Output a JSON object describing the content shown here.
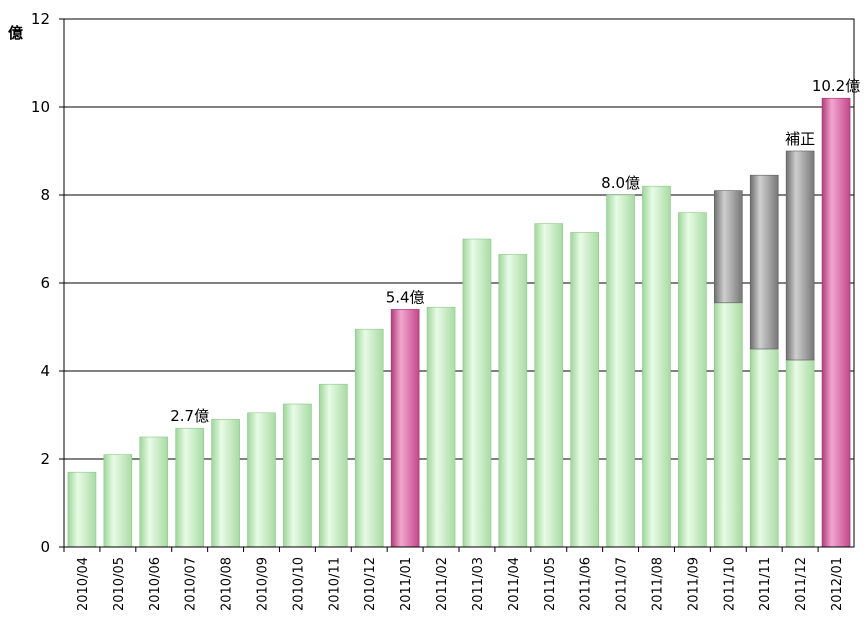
{
  "chart_data": {
    "type": "bar",
    "ylabel": "億",
    "ylim": [
      0,
      12
    ],
    "yticks": [
      "0",
      "2",
      "4",
      "6",
      "8",
      "10",
      "12"
    ],
    "grid": true,
    "categories": [
      "2010/04",
      "2010/05",
      "2010/06",
      "2010/07",
      "2010/08",
      "2010/09",
      "2010/10",
      "2010/11",
      "2010/12",
      "2011/01",
      "2011/02",
      "2011/03",
      "2011/04",
      "2011/05",
      "2011/06",
      "2011/07",
      "2011/08",
      "2011/09",
      "2011/10",
      "2011/11",
      "2011/12",
      "2012/01"
    ],
    "series": [
      {
        "values": [
          1.7,
          2.1,
          2.5,
          2.7,
          2.9,
          3.05,
          3.25,
          3.7,
          4.95,
          5.4,
          5.45,
          7.0,
          6.65,
          7.35,
          7.15,
          8.0,
          8.2,
          7.6,
          5.55,
          4.5,
          4.25,
          10.2
        ],
        "colors": [
          "green",
          "green",
          "green",
          "green",
          "green",
          "green",
          "green",
          "green",
          "green",
          "pink",
          "green",
          "green",
          "green",
          "green",
          "green",
          "green",
          "green",
          "green",
          "green",
          "green",
          "green",
          "pink"
        ]
      },
      {
        "name": "補正",
        "values": [
          0,
          0,
          0,
          0,
          0,
          0,
          0,
          0,
          0,
          0,
          0,
          0,
          0,
          0,
          0,
          0,
          0,
          0,
          2.55,
          3.95,
          4.75,
          0
        ]
      }
    ],
    "colors": {
      "green": "#c9f0c5",
      "pink": "#d9579c",
      "gray": "#8f8f8f"
    },
    "annotations": [
      {
        "text": "2.7億",
        "category": "2010/07",
        "value": 2.7
      },
      {
        "text": "5.4億",
        "category": "2011/01",
        "value": 5.4
      },
      {
        "text": "8.0億",
        "category": "2011/07",
        "value": 8.0
      },
      {
        "text": "補正",
        "category": "2011/12",
        "value": 9.0
      },
      {
        "text": "10.2億",
        "category": "2012/01",
        "value": 10.2
      }
    ]
  }
}
